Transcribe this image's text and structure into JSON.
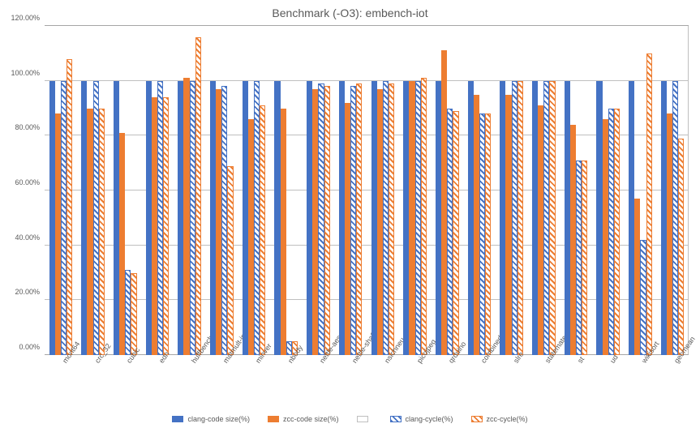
{
  "chart": {
    "type": "bar",
    "title": "Benchmark (-O3): embench-iot",
    "title_fontsize": 14,
    "title_color": "#595959",
    "background_color": "#ffffff",
    "grid_color": "#bfbfbf",
    "axis_font_color": "#595959",
    "axis_fontsize": 9,
    "ylim": [
      0,
      120
    ],
    "ytick_step": 20,
    "y_format": "percent_2dp",
    "yticks": [
      "0.00%",
      "20.00%",
      "40.00%",
      "60.00%",
      "80.00%",
      "100.00%",
      "120.00%"
    ],
    "categories": [
      "mont64",
      "crc_32",
      "cubic",
      "edn",
      "huffbench",
      "matmult-int",
      "minver",
      "nbody",
      "nettle-aes",
      "nettle-sha256",
      "nsichneu",
      "picojpeg",
      "qrduino",
      "combined",
      "slre",
      "statemate",
      "st",
      "ud",
      "wikisort",
      "geomean"
    ],
    "series": [
      {
        "key": "clang_code_size",
        "label": "clang-code size(%)",
        "style": "solid-blue",
        "color": "#4472c4"
      },
      {
        "key": "zcc_code_size",
        "label": "zcc-code size(%)",
        "style": "solid-orange",
        "color": "#ed7d31"
      },
      {
        "key": "blank",
        "label": "",
        "style": "white",
        "color": "#ffffff"
      },
      {
        "key": "clang_cycle",
        "label": "clang-cycle(%)",
        "style": "hatch-blue",
        "color": "#4472c4"
      },
      {
        "key": "zcc_cycle",
        "label": "zcc-cycle(%)",
        "style": "hatch-orange",
        "color": "#ed7d31"
      }
    ],
    "data": {
      "clang_code_size": [
        100,
        100,
        100,
        100,
        100,
        100,
        100,
        100,
        100,
        100,
        100,
        100,
        100,
        100,
        100,
        100,
        100,
        100,
        100,
        100
      ],
      "zcc_code_size": [
        88,
        90,
        81,
        94,
        101,
        97,
        86,
        90,
        97,
        92,
        97,
        100,
        111,
        95,
        95,
        91,
        84,
        86,
        57,
        88
      ],
      "blank": [
        0,
        0,
        0,
        0,
        0,
        0,
        0,
        0,
        0,
        0,
        0,
        0,
        0,
        0,
        0,
        0,
        0,
        0,
        0,
        0
      ],
      "clang_cycle": [
        100,
        100,
        31,
        100,
        100,
        98,
        100,
        5,
        99,
        98,
        100,
        100,
        90,
        88,
        100,
        100,
        71,
        90,
        42,
        100
      ],
      "zcc_cycle": [
        108,
        90,
        30,
        94,
        116,
        69,
        91,
        5,
        98,
        99,
        99,
        101,
        89,
        88,
        100,
        100,
        71,
        90,
        110,
        79
      ]
    },
    "legend_position": "bottom-center",
    "bar_group_gap_ratio": 0.28
  }
}
